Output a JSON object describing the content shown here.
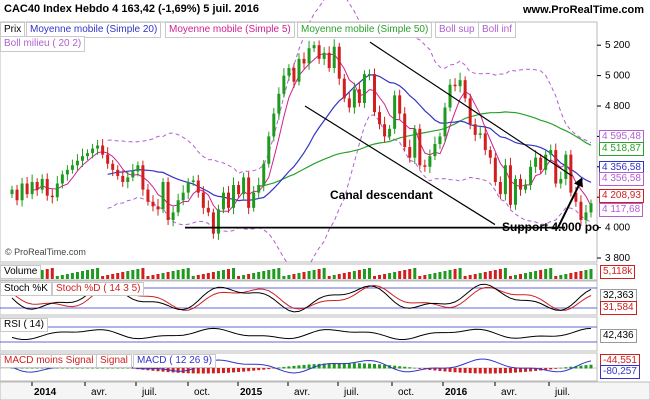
{
  "header": {
    "title": "CAC40 Index   Hebdo   4 163,42 (-1,69%)   5 juil. 2016",
    "site": "www.ProRealTime.com"
  },
  "legend": {
    "prix": "Prix",
    "mm20": "Moyenne mobile (Simple 20)",
    "mm5": "Moyenne mobile (Simple 5)",
    "mm50": "Moyenne mobile (Simple 50)",
    "boll_sup": "Boll sup",
    "boll_inf": "Boll inf",
    "boll_milieu": "Boll milieu ( 20 2)"
  },
  "annotations": {
    "channel": "Canal descendant",
    "support": "Support 4.000 po",
    "watermark": "© ProRealTime.com"
  },
  "price_axis": {
    "ticks": [
      "5 200",
      "5 000",
      "4 800",
      "4 600",
      "4 400",
      "4 200",
      "4 000",
      "3 800"
    ]
  },
  "price_tags": [
    {
      "label": "4 595,48",
      "color": "#b15fd1"
    },
    {
      "label": "4 518,87",
      "color": "#2aa12a"
    },
    {
      "label": "4 356,58",
      "color": "#3333cc"
    },
    {
      "label": "4 356,58",
      "color": "#b15fd1"
    },
    {
      "label": "4 208,93",
      "color": "#d11f1f"
    },
    {
      "label": "4 117,68",
      "color": "#b15fd1"
    }
  ],
  "panels": {
    "volume": {
      "label": "Volume",
      "value": "5,118k",
      "color": "#d11f1f"
    },
    "stoch": {
      "label_k": "Stoch %K",
      "label_d": "Stoch %D ( 14 3 5)",
      "value_k": "32,363",
      "value_d": "31,584"
    },
    "rsi": {
      "label": "RSI ( 14)",
      "value": "42,436"
    },
    "macd": {
      "label_a": "MACD moins Signal",
      "label_b": "Signal",
      "label_c": "MACD ( 12 26 9)",
      "value_top": "-44,551",
      "value": "-80,257"
    }
  },
  "time_axis": {
    "labels": [
      "2014",
      "avr.",
      "juil.",
      "oct.",
      "2015",
      "avr.",
      "juil.",
      "oct.",
      "2016",
      "avr.",
      "juil."
    ]
  },
  "chart_data": {
    "type": "candlestick",
    "title": "CAC40 Index",
    "timeframe": "Hebdo",
    "last": 4163.42,
    "change_pct": -1.69,
    "date": "5 juil. 2016",
    "ylim": [
      3800,
      5300
    ],
    "series_close": [
      4250,
      4180,
      4290,
      4220,
      4300,
      4250,
      4320,
      4210,
      4200,
      4290,
      4350,
      4380,
      4410,
      4440,
      4470,
      4490,
      4520,
      4540,
      4480,
      4420,
      4380,
      4340,
      4300,
      4330,
      4370,
      4410,
      4250,
      4170,
      4140,
      4120,
      4300,
      4050,
      4100,
      4180,
      4230,
      4300,
      4310,
      4230,
      4130,
      4100,
      3960,
      4120,
      4230,
      4130,
      4280,
      4220,
      4330,
      4130,
      4230,
      4280,
      4420,
      4600,
      4750,
      4880,
      5000,
      5050,
      4960,
      5110,
      5080,
      5180,
      5200,
      5110,
      5150,
      5050,
      5190,
      4980,
      4850,
      4790,
      4910,
      4820,
      5010,
      5010,
      4760,
      4680,
      4600,
      4650,
      4870,
      4750,
      4530,
      4460,
      4650,
      4410,
      4400,
      4470,
      4550,
      4600,
      4790,
      4940,
      4930,
      4970,
      4850,
      4680,
      4610,
      4620,
      4510,
      4460,
      4300,
      4220,
      4410,
      4150,
      4320,
      4250,
      4280,
      4400,
      4460,
      4380,
      4480,
      4510,
      4290,
      4320,
      4480,
      4230,
      4170,
      4050,
      4100,
      4160
    ],
    "support": 4000
  }
}
